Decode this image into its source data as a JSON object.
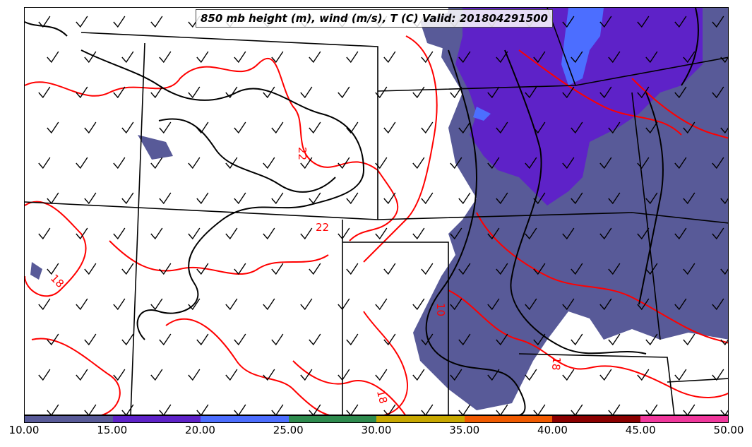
{
  "title": "850 mb height (m), wind (m/s), T (C) Valid: 201804291500",
  "colorbar": {
    "colors": [
      "#585a98",
      "#5e22c8",
      "#4c6eff",
      "#2e8b4e",
      "#c8a800",
      "#f05a00",
      "#8b0000",
      "#f0389c"
    ],
    "ticks": [
      "10.00",
      "15.00",
      "20.00",
      "25.00",
      "30.00",
      "35.00",
      "40.00",
      "45.00",
      "50.00"
    ]
  },
  "contour_labels": [
    "22",
    "22",
    "18",
    "18",
    "18",
    "10"
  ],
  "colors": {
    "temperature_contour": "#ff0000",
    "height_contour": "#000000",
    "border": "#000000",
    "wind_barb": "#000000"
  }
}
